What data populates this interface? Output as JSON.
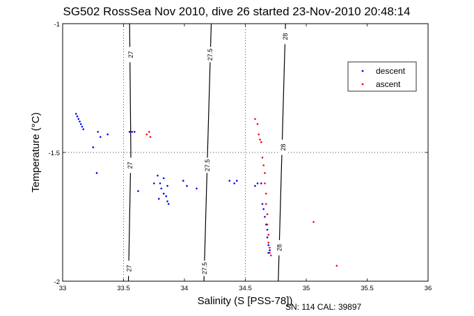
{
  "chart_data": {
    "type": "scatter",
    "title": "SG502 RossSea Nov 2010, dive 26 started 23-Nov-2010 20:48:14",
    "xlabel": "Salinity (S [PSS-78])",
    "ylabel": "Temperature (°C)",
    "xlim": [
      33,
      36
    ],
    "ylim": [
      -2,
      -1
    ],
    "xticks": [
      33,
      33.5,
      34,
      34.5,
      35,
      35.5,
      36
    ],
    "xtick_labels": [
      "33",
      "33.5",
      "34",
      "34.5",
      "35",
      "35.5",
      "36"
    ],
    "yticks": [
      -2,
      -1.5,
      -1
    ],
    "ytick_labels": [
      "-2",
      "-1.5",
      "-1"
    ],
    "grid": "dotted at 33.5, 34.5 (x) and -1.5 (y)",
    "legend_position": "top-right",
    "series": [
      {
        "name": "descent",
        "color": "#0000ff",
        "marker": "dot",
        "points": [
          [
            33.11,
            -1.35
          ],
          [
            33.12,
            -1.36
          ],
          [
            33.13,
            -1.37
          ],
          [
            33.14,
            -1.38
          ],
          [
            33.15,
            -1.39
          ],
          [
            33.16,
            -1.4
          ],
          [
            33.17,
            -1.41
          ],
          [
            33.29,
            -1.42
          ],
          [
            33.31,
            -1.44
          ],
          [
            33.37,
            -1.43
          ],
          [
            33.25,
            -1.48
          ],
          [
            33.28,
            -1.58
          ],
          [
            33.55,
            -1.42
          ],
          [
            33.57,
            -1.42
          ],
          [
            33.59,
            -1.42
          ],
          [
            33.62,
            -1.65
          ],
          [
            33.78,
            -1.59
          ],
          [
            33.8,
            -1.62
          ],
          [
            33.83,
            -1.6
          ],
          [
            33.75,
            -1.62
          ],
          [
            33.81,
            -1.64
          ],
          [
            33.86,
            -1.63
          ],
          [
            33.83,
            -1.66
          ],
          [
            33.79,
            -1.68
          ],
          [
            33.85,
            -1.67
          ],
          [
            33.86,
            -1.69
          ],
          [
            33.87,
            -1.7
          ],
          [
            33.99,
            -1.61
          ],
          [
            34.02,
            -1.63
          ],
          [
            34.1,
            -1.64
          ],
          [
            34.37,
            -1.61
          ],
          [
            34.41,
            -1.62
          ],
          [
            34.43,
            -1.61
          ],
          [
            34.58,
            -1.63
          ],
          [
            34.6,
            -1.62
          ],
          [
            34.63,
            -1.62
          ],
          [
            34.64,
            -1.7
          ],
          [
            34.65,
            -1.72
          ],
          [
            34.66,
            -1.75
          ],
          [
            34.67,
            -1.78
          ],
          [
            34.68,
            -1.8
          ],
          [
            34.68,
            -1.83
          ],
          [
            34.69,
            -1.86
          ],
          [
            34.7,
            -1.88
          ],
          [
            34.69,
            -1.89
          ]
        ]
      },
      {
        "name": "ascent",
        "color": "#ff0000",
        "marker": "dot",
        "points": [
          [
            33.69,
            -1.43
          ],
          [
            33.71,
            -1.42
          ],
          [
            33.72,
            -1.44
          ],
          [
            34.58,
            -1.37
          ],
          [
            34.6,
            -1.39
          ],
          [
            34.61,
            -1.43
          ],
          [
            34.62,
            -1.45
          ],
          [
            34.63,
            -1.46
          ],
          [
            34.64,
            -1.52
          ],
          [
            34.65,
            -1.55
          ],
          [
            34.66,
            -1.58
          ],
          [
            34.66,
            -1.62
          ],
          [
            34.67,
            -1.66
          ],
          [
            34.67,
            -1.7
          ],
          [
            34.68,
            -1.74
          ],
          [
            34.68,
            -1.78
          ],
          [
            34.69,
            -1.82
          ],
          [
            34.69,
            -1.85
          ],
          [
            34.7,
            -1.87
          ],
          [
            34.7,
            -1.89
          ],
          [
            34.71,
            -1.9
          ],
          [
            35.06,
            -1.77
          ],
          [
            35.25,
            -1.94
          ]
        ]
      }
    ],
    "contours": [
      {
        "level": "27",
        "points": [
          [
            33.55,
            -1.0
          ],
          [
            33.56,
            -1.5
          ],
          [
            33.54,
            -2.0
          ]
        ],
        "label_positions": [
          [
            33.56,
            -1.12
          ],
          [
            33.555,
            -1.55
          ],
          [
            33.545,
            -1.95
          ]
        ]
      },
      {
        "level": "27.5",
        "points": [
          [
            34.22,
            -1.0
          ],
          [
            34.19,
            -1.5
          ],
          [
            34.16,
            -2.0
          ]
        ],
        "label_positions": [
          [
            34.21,
            -1.12
          ],
          [
            34.19,
            -1.55
          ],
          [
            34.165,
            -1.95
          ]
        ]
      },
      {
        "level": "28",
        "points": [
          [
            34.83,
            -1.0
          ],
          [
            34.8,
            -1.5
          ],
          [
            34.77,
            -2.0
          ]
        ],
        "label_positions": [
          [
            34.83,
            -1.05
          ],
          [
            34.81,
            -1.48
          ],
          [
            34.78,
            -1.87
          ]
        ]
      }
    ]
  },
  "footer": {
    "sn_label": "SN: 114  CAL: 39897"
  }
}
